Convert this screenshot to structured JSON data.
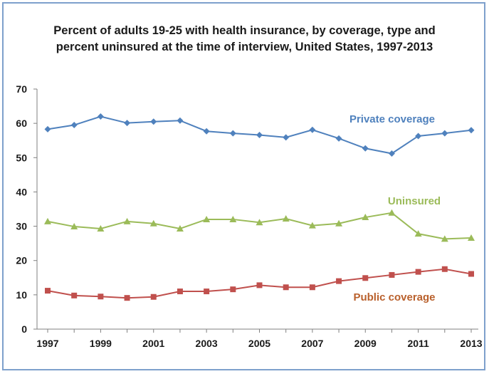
{
  "chart_data": {
    "type": "line",
    "title_line1": "Percent of adults 19-25  with health insurance, by coverage, type and",
    "title_line2": "percent uninsured  at the time of interview, United  States, 1997-2013",
    "x": [
      1997,
      1998,
      1999,
      2000,
      2001,
      2002,
      2003,
      2004,
      2005,
      2006,
      2007,
      2008,
      2009,
      2010,
      2011,
      2012,
      2013
    ],
    "x_tick_labels": [
      "1997",
      "1999",
      "2001",
      "2003",
      "2005",
      "2007",
      "2009",
      "2011",
      "2013"
    ],
    "y_tick_labels": [
      "0",
      "10",
      "20",
      "30",
      "40",
      "50",
      "60",
      "70"
    ],
    "ylim": [
      0,
      70
    ],
    "grid": false,
    "series": [
      {
        "name": "Private coverage",
        "color": "#4f81bd",
        "marker": "diamond",
        "values": [
          58.3,
          59.5,
          62.0,
          60.1,
          60.5,
          60.8,
          57.7,
          57.1,
          56.6,
          55.9,
          58.1,
          55.6,
          52.7,
          51.2,
          56.3,
          57.1,
          58.0
        ]
      },
      {
        "name": "Uninsured",
        "color": "#9bbb59",
        "marker": "triangle",
        "values": [
          31.4,
          29.9,
          29.3,
          31.4,
          30.8,
          29.3,
          32.0,
          32.0,
          31.1,
          32.2,
          30.2,
          30.8,
          32.6,
          33.9,
          27.8,
          26.3,
          26.6
        ]
      },
      {
        "name": "Public coverage",
        "color": "#c0504d",
        "marker": "square",
        "values": [
          11.2,
          9.8,
          9.5,
          9.1,
          9.4,
          11.0,
          11.0,
          11.6,
          12.8,
          12.2,
          12.2,
          14.0,
          14.9,
          15.8,
          16.7,
          17.5,
          16.1
        ]
      }
    ],
    "label_colors": {
      "Private coverage": "#4f81bd",
      "Uninsured": "#9bbb59",
      "Public coverage": "#b9602c"
    }
  }
}
